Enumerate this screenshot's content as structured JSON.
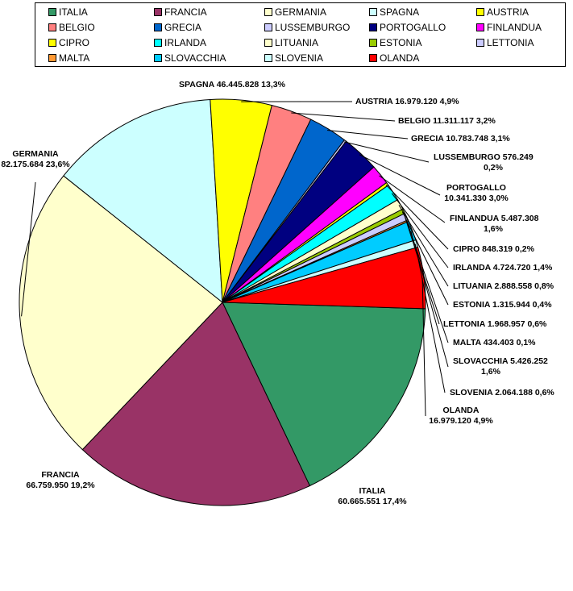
{
  "chart_data": {
    "type": "pie",
    "legend_position": "top",
    "slices": [
      {
        "name": "ITALIA",
        "value_text": "60.665.551",
        "pct_text": "17,4%",
        "value": 60665551,
        "color": "#339966"
      },
      {
        "name": "FRANCIA",
        "value_text": "66.759.950",
        "pct_text": "19,2%",
        "value": 66759950,
        "color": "#993366"
      },
      {
        "name": "GERMANIA",
        "value_text": "82.175.684",
        "pct_text": "23,6%",
        "value": 82175684,
        "color": "#FFFFCC"
      },
      {
        "name": "SPAGNA",
        "value_text": "46.445.828",
        "pct_text": "13,3%",
        "value": 46445828,
        "color": "#CCFFFF"
      },
      {
        "name": "AUSTRIA",
        "value_text": "16.979.120",
        "pct_text": "4,9%",
        "value": 16979120,
        "color": "#FFFF00"
      },
      {
        "name": "BELGIO",
        "value_text": "11.311.117",
        "pct_text": "3,2%",
        "value": 11311117,
        "color": "#FF8080"
      },
      {
        "name": "GRECIA",
        "value_text": "10.783.748",
        "pct_text": "3,1%",
        "value": 10783748,
        "color": "#0066CC"
      },
      {
        "name": "LUSSEMBURGO",
        "value_text": "576.249",
        "pct_text": "0,2%",
        "value": 576249,
        "color": "#CCCCFF"
      },
      {
        "name": "PORTOGALLO",
        "value_text": "10.341.330",
        "pct_text": "3,0%",
        "value": 10341330,
        "color": "#000080"
      },
      {
        "name": "FINLANDUA",
        "value_text": "5.487.308",
        "pct_text": "1,6%",
        "value": 5487308,
        "color": "#FF00FF"
      },
      {
        "name": "CIPRO",
        "value_text": "848.319",
        "pct_text": "0,2%",
        "value": 848319,
        "color": "#FFFF00"
      },
      {
        "name": "IRLANDA",
        "value_text": "4.724.720",
        "pct_text": "1,4%",
        "value": 4724720,
        "color": "#00FFFF"
      },
      {
        "name": "LITUANIA",
        "value_text": "2.888.558",
        "pct_text": "0,8%",
        "value": 2888558,
        "color": "#FFFFCC"
      },
      {
        "name": "ESTONIA",
        "value_text": "1.315.944",
        "pct_text": "0,4%",
        "value": 1315944,
        "color": "#99CC00"
      },
      {
        "name": "LETTONIA",
        "value_text": "1.968.957",
        "pct_text": "0,6%",
        "value": 1968957,
        "color": "#CCCCFF"
      },
      {
        "name": "MALTA",
        "value_text": "434.403",
        "pct_text": "0,1%",
        "value": 434403,
        "color": "#FF9933"
      },
      {
        "name": "SLOVACCHIA",
        "value_text": "5.426.252",
        "pct_text": "1,6%",
        "value": 5426252,
        "color": "#00CCFF"
      },
      {
        "name": "SLOVENIA",
        "value_text": "2.064.188",
        "pct_text": "0,6%",
        "value": 2064188,
        "color": "#CCFFFF"
      },
      {
        "name": "OLANDA",
        "value_text": "16.979.120",
        "pct_text": "4,9%",
        "value": 16979120,
        "color": "#FF0000"
      }
    ]
  }
}
